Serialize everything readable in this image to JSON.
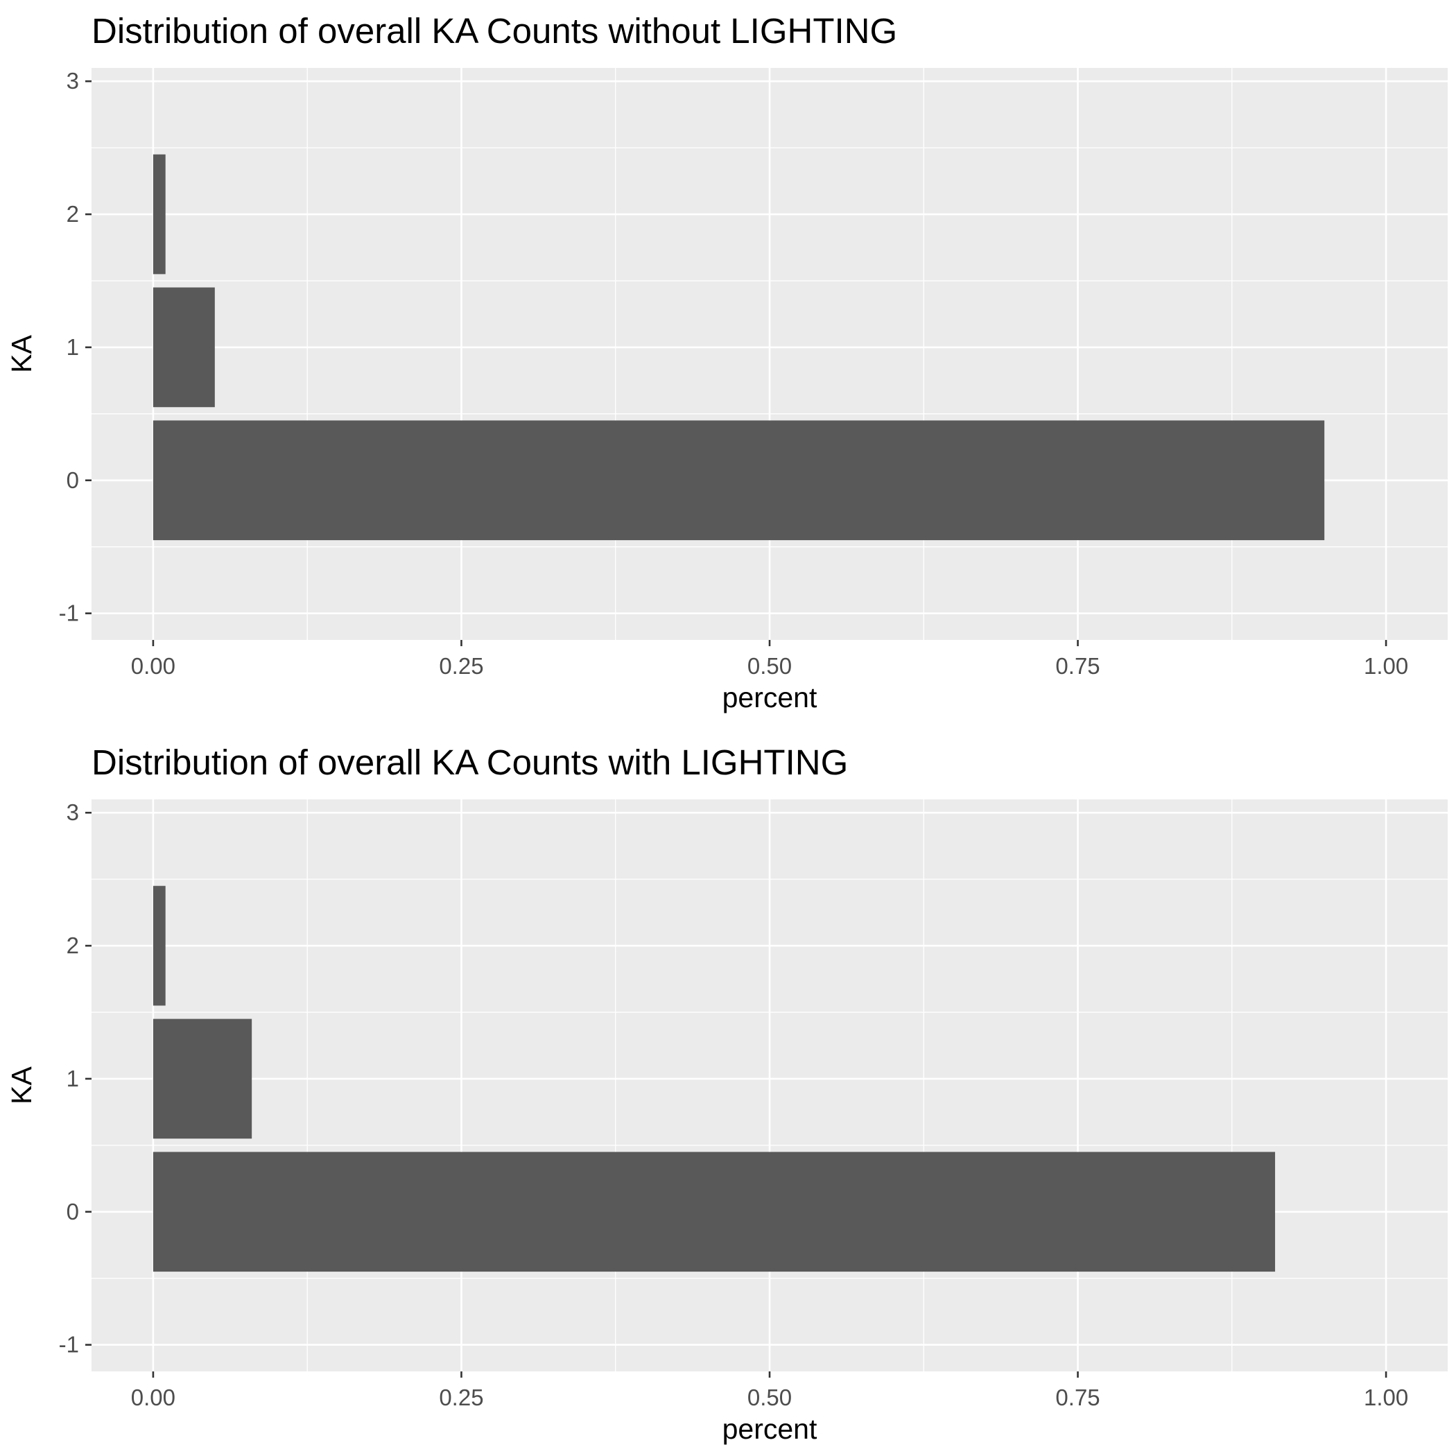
{
  "chart_data": [
    {
      "type": "bar",
      "orientation": "horizontal",
      "title": "Distribution of overall KA Counts without LIGHTING",
      "xlabel": "percent",
      "ylabel": "KA",
      "categories": [
        0,
        1,
        2
      ],
      "values": [
        0.95,
        0.05,
        0.01
      ],
      "xlim": [
        -0.05,
        1.05
      ],
      "ylim": [
        -1.2,
        3.1
      ],
      "xticks": [
        "0.00",
        "0.25",
        "0.50",
        "0.75",
        "1.00"
      ],
      "yticks": [
        "-1",
        "0",
        "1",
        "2",
        "3"
      ],
      "grid": true,
      "colors": {
        "bar": "#595959",
        "panel": "#ebebeb",
        "grid": "#ffffff"
      }
    },
    {
      "type": "bar",
      "orientation": "horizontal",
      "title": "Distribution of overall KA Counts with LIGHTING",
      "xlabel": "percent",
      "ylabel": "KA",
      "categories": [
        0,
        1,
        2
      ],
      "values": [
        0.91,
        0.08,
        0.01
      ],
      "xlim": [
        -0.05,
        1.05
      ],
      "ylim": [
        -1.2,
        3.1
      ],
      "xticks": [
        "0.00",
        "0.25",
        "0.50",
        "0.75",
        "1.00"
      ],
      "yticks": [
        "-1",
        "0",
        "1",
        "2",
        "3"
      ],
      "grid": true,
      "colors": {
        "bar": "#595959",
        "panel": "#ebebeb",
        "grid": "#ffffff"
      }
    }
  ]
}
